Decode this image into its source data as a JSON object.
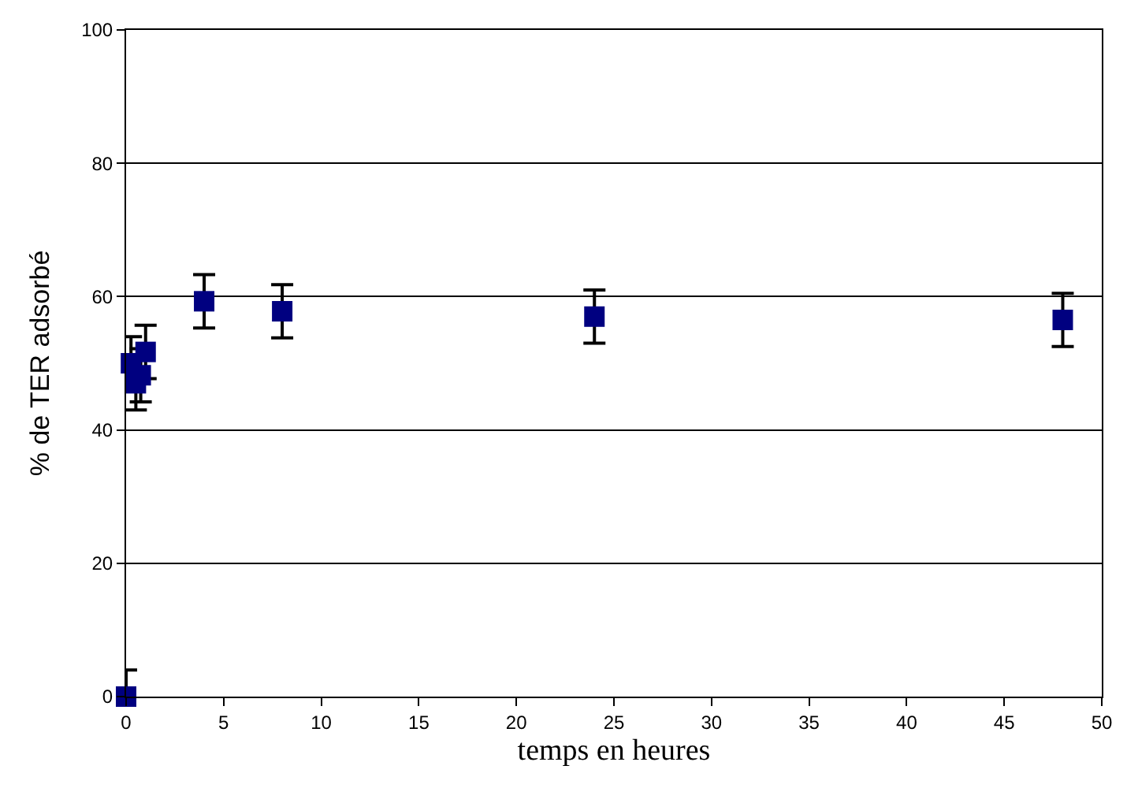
{
  "chart_data": {
    "type": "scatter",
    "xlabel": "temps en heures",
    "ylabel": "% de TER adsorbé",
    "x": [
      0,
      0.25,
      0.5,
      0.75,
      1,
      4,
      8,
      24,
      48
    ],
    "values": [
      0,
      50,
      47,
      48.2,
      51.7,
      59.3,
      57.8,
      57,
      56.5
    ],
    "errors": [
      4,
      4,
      4,
      4,
      4,
      4,
      4,
      4,
      4
    ],
    "color": "#000080",
    "marker": "square",
    "grid": "y",
    "xlim": [
      0,
      50
    ],
    "xticks": [
      0,
      5,
      10,
      15,
      20,
      25,
      30,
      35,
      40,
      45,
      50
    ],
    "ylim": [
      0,
      100
    ],
    "yticks": [
      0,
      20,
      40,
      60,
      80,
      100
    ]
  }
}
